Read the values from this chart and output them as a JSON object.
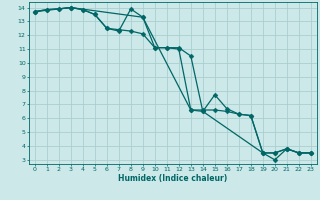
{
  "xlabel": "Humidex (Indice chaleur)",
  "bg_color": "#cce8e8",
  "grid_color": "#aacfcf",
  "line_color": "#006666",
  "xlim": [
    -0.5,
    23.5
  ],
  "ylim": [
    2.7,
    14.4
  ],
  "xticks": [
    0,
    1,
    2,
    3,
    4,
    5,
    6,
    7,
    8,
    9,
    10,
    11,
    12,
    13,
    14,
    15,
    16,
    17,
    18,
    19,
    20,
    21,
    22,
    23
  ],
  "yticks": [
    3,
    4,
    5,
    6,
    7,
    8,
    9,
    10,
    11,
    12,
    13,
    14
  ],
  "line1_x": [
    0,
    1,
    2,
    3,
    4,
    5,
    6,
    7,
    8,
    9,
    10,
    11,
    12,
    13,
    14,
    15,
    16,
    17,
    18,
    19,
    20,
    21,
    22,
    23
  ],
  "line1_y": [
    13.7,
    13.85,
    13.9,
    14.0,
    13.85,
    13.5,
    12.5,
    12.3,
    13.9,
    13.3,
    11.1,
    11.1,
    11.1,
    10.5,
    6.5,
    7.7,
    6.7,
    6.3,
    6.2,
    3.5,
    3.5,
    3.8,
    3.5,
    3.5
  ],
  "line2_x": [
    0,
    1,
    2,
    3,
    4,
    5,
    6,
    7,
    8,
    9,
    10,
    11,
    12,
    13,
    14,
    15,
    16,
    17,
    18,
    19,
    20,
    21,
    22,
    23
  ],
  "line2_y": [
    13.7,
    13.85,
    13.9,
    14.0,
    13.85,
    13.5,
    12.5,
    12.4,
    12.3,
    12.1,
    11.1,
    11.1,
    11.0,
    6.6,
    6.6,
    6.6,
    6.5,
    6.3,
    6.2,
    3.5,
    3.5,
    3.8,
    3.5,
    3.5
  ],
  "line3_x": [
    0,
    3,
    9,
    13,
    14,
    19,
    20,
    21,
    22,
    23
  ],
  "line3_y": [
    13.7,
    14.0,
    13.3,
    6.6,
    6.5,
    3.5,
    3.0,
    3.8,
    3.5,
    3.5
  ]
}
